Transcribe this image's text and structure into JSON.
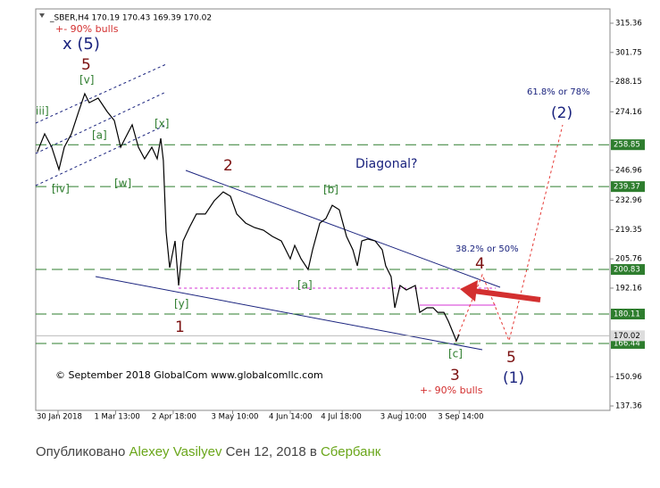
{
  "chart_data": {
    "type": "line",
    "header": "_SBER,H4  170.19 170.43 169.39 170.02",
    "x": [
      -11.1,
      -7.2,
      -3.4,
      0.5,
      3.4,
      7.2,
      11.1,
      14.4,
      16.8,
      21.6,
      26.4,
      30.3,
      33.7,
      36.1,
      39.9,
      43.3,
      46.6,
      50.5,
      53.4,
      55.3,
      56.7,
      58.2,
      60.1,
      63.0,
      64.9,
      67.3,
      70.7,
      74.5,
      79.3,
      84.1,
      88.9,
      92.8,
      96.2,
      101.0,
      105.8,
      110.6,
      115.4,
      120.2,
      125.0,
      127.4,
      130.8,
      134.6,
      137.0,
      140.9,
      144.2,
      147.6,
      151.4,
      155.3,
      158.7,
      161.1,
      163.5,
      166.8,
      170.7,
      174.5,
      176.4,
      179.3,
      181.3,
      184.1,
      187.5,
      192.3,
      194.7,
      198.6,
      201.9,
      204.3,
      207.7,
      210.1,
      213.0,
      214.4,
      215.9
    ],
    "values": [
      255.6,
      263.9,
      257.7,
      247.3,
      257.7,
      263.9,
      274.3,
      282.6,
      278.4,
      280.5,
      274.3,
      270.1,
      257.7,
      261.8,
      268.1,
      257.7,
      252.3,
      257.7,
      252.3,
      261.8,
      251.5,
      218.3,
      201.7,
      214.1,
      193.4,
      214.1,
      220.3,
      226.6,
      226.6,
      232.8,
      236.9,
      234.9,
      226.6,
      222.4,
      220.3,
      219.1,
      216.2,
      214.1,
      205.8,
      212.0,
      205.8,
      200.8,
      210.0,
      222.4,
      224.5,
      230.7,
      228.6,
      216.2,
      210.0,
      202.5,
      214.1,
      215.0,
      214.1,
      210.0,
      202.5,
      197.5,
      183.0,
      193.4,
      191.3,
      193.4,
      180.9,
      183.0,
      183.0,
      180.9,
      180.9,
      176.8,
      170.6,
      167.6,
      170.6
    ],
    "color": "#000000",
    "xlim": [
      -12,
      297.1
    ],
    "ylim": [
      135.3,
      322.0
    ],
    "xticks": [
      {
        "value": 0,
        "label": "30 Jan 2018"
      },
      {
        "value": 31,
        "label": "1 Mar 13:00"
      },
      {
        "value": 62,
        "label": "2 Apr 18:00"
      },
      {
        "value": 94,
        "label": "3 May 10:00"
      },
      {
        "value": 125,
        "label": "4 Jun 14:00"
      },
      {
        "value": 153,
        "label": "4 Jul 18:00"
      },
      {
        "value": 185,
        "label": "3 Aug 10:00"
      },
      {
        "value": 216,
        "label": "3 Sep 14:00"
      }
    ],
    "yticks": [
      315.36,
      301.75,
      288.15,
      274.16,
      246.96,
      232.96,
      219.35,
      205.76,
      192.16,
      150.96,
      137.36
    ],
    "levels": {
      "values": [
        258.85,
        239.37,
        200.83,
        180.11,
        166.44
      ],
      "color": "#2e7d2e"
    },
    "last_price": 170.02,
    "annotations": [
      {
        "text": "x (5)",
        "color": "#1a237e"
      },
      {
        "text": "+- 90% bulls",
        "color": "#d32f2f"
      },
      {
        "text": "5",
        "color": "#7b1010"
      },
      {
        "text": "[v]",
        "color": "#2e7d2e"
      },
      {
        "text": "iii]",
        "color": "#2e7d2e"
      },
      {
        "text": "[a]",
        "color": "#2e7d2e"
      },
      {
        "text": "[x]",
        "color": "#2e7d2e"
      },
      {
        "text": "[iv]",
        "color": "#2e7d2e"
      },
      {
        "text": "[w]",
        "color": "#2e7d2e"
      },
      {
        "text": "2",
        "color": "#7b1010"
      },
      {
        "text": "Diagonal?",
        "color": "#1a237e"
      },
      {
        "text": "[b]",
        "color": "#2e7d2e"
      },
      {
        "text": "[a]",
        "color": "#2e7d2e"
      },
      {
        "text": "[y]",
        "color": "#2e7d2e"
      },
      {
        "text": "1",
        "color": "#7b1010"
      },
      {
        "text": "38.2% or 50%",
        "color": "#1a237e"
      },
      {
        "text": "4",
        "color": "#7b1010"
      },
      {
        "text": "61.8% or 78%",
        "color": "#1a237e"
      },
      {
        "text": "(2)",
        "color": "#1a237e"
      },
      {
        "text": "[c]",
        "color": "#2e7d2e"
      },
      {
        "text": "3",
        "color": "#7b1010"
      },
      {
        "text": "+- 90% bulls",
        "color": "#d32f2f"
      },
      {
        "text": "5",
        "color": "#7b1010"
      },
      {
        "text": "(1)",
        "color": "#1a237e"
      },
      {
        "text": "© September 2018 GlobalCom www.globalcomllc.com",
        "color": "#000000"
      }
    ]
  },
  "footer": {
    "prefix": "Опубликовано",
    "author": "Alexey Vasilyev",
    "date": "Сен 12, 2018",
    "in": "в",
    "symbol": "Сбербанк"
  }
}
